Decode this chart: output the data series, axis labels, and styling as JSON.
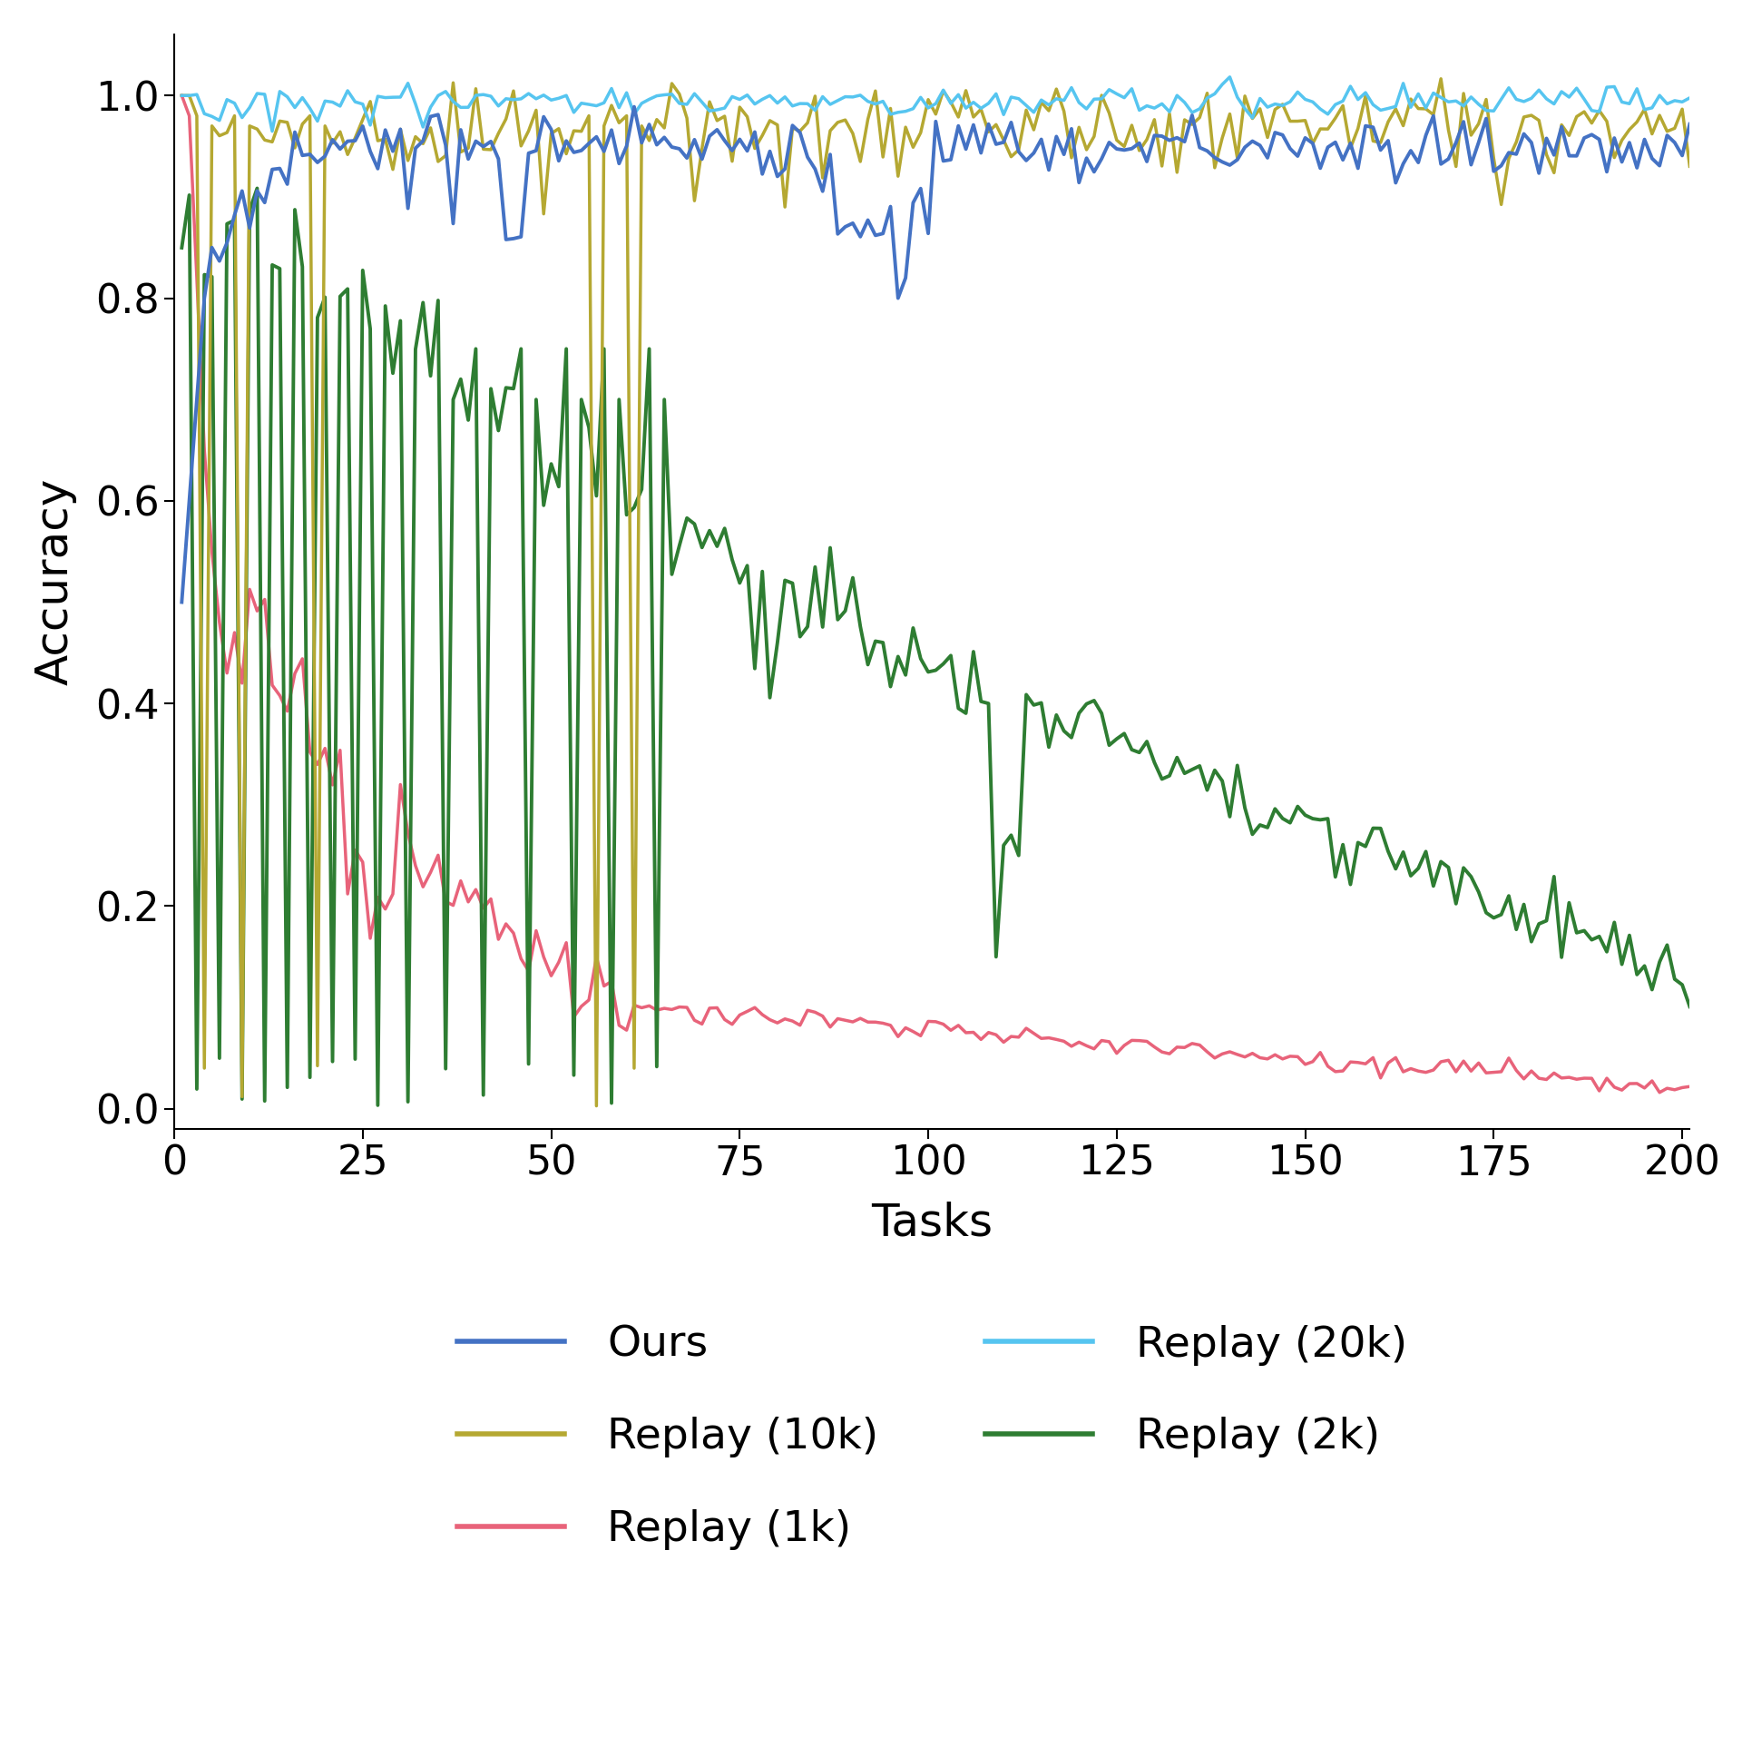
{
  "title": "",
  "xlabel": "Tasks",
  "ylabel": "Accuracy",
  "xlim": [
    0,
    201
  ],
  "ylim": [
    -0.02,
    1.06
  ],
  "xticks": [
    0,
    25,
    50,
    75,
    100,
    125,
    150,
    175,
    200
  ],
  "yticks": [
    0.0,
    0.2,
    0.4,
    0.6,
    0.8,
    1.0
  ],
  "colors": {
    "ours": "#4472C4",
    "replay_1k": "#E8637A",
    "replay_2k": "#2E7D32",
    "replay_10k": "#B5A832",
    "replay_20k": "#56C5F0"
  },
  "linewidths": {
    "ours": 2.8,
    "replay_1k": 2.5,
    "replay_2k": 2.8,
    "replay_10k": 2.5,
    "replay_20k": 2.5
  },
  "figsize": [
    19.2,
    19.14
  ],
  "dpi": 100,
  "n_tasks": 201,
  "background_color": "#ffffff",
  "font_size": 36,
  "tick_font_size": 32,
  "legend_font_size": 34
}
